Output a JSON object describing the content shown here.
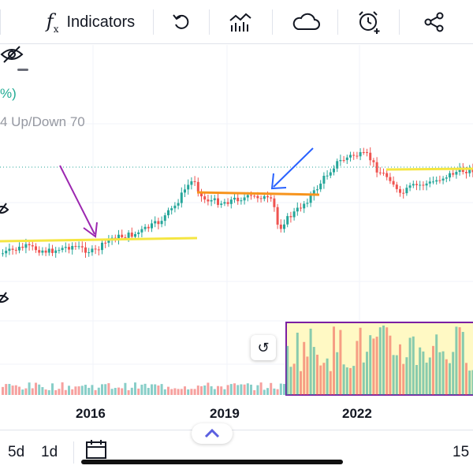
{
  "toolbar": {
    "fx_symbol": "f",
    "fx_sub": "x",
    "indicators_label": "Indicators",
    "icons": [
      "undo-icon",
      "compare-icon",
      "cloud-icon",
      "alarm-icon",
      "share-icon"
    ]
  },
  "legend": {
    "pct_text": "%)",
    "volume_text": "4 Up/Down 70"
  },
  "axis": {
    "years": [
      "2016",
      "2019",
      "2022"
    ]
  },
  "reset_symbol": "↺",
  "bottom": {
    "range_5d": "5d",
    "range_1d": "1d",
    "right_value": "15",
    "expand_symbol": "^"
  },
  "colors": {
    "up": "#26a69a",
    "down": "#ef5350",
    "support_line": "#f5e642",
    "resistance_orange": "#f7941d",
    "arrow_purple": "#9c27b0",
    "arrow_blue": "#2962ff",
    "highlight_box": "#7b1fa2",
    "highlight_fill": "#fff9c4"
  }
}
